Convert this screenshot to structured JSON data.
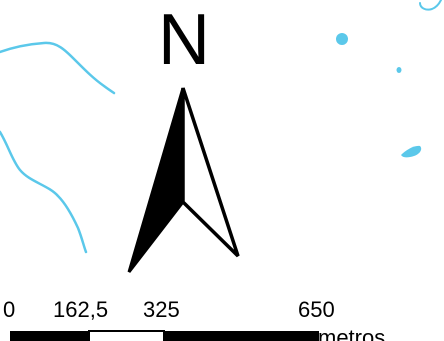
{
  "north_arrow": {
    "label": "N"
  },
  "scale_bar": {
    "ticks": [
      "0",
      "162,5",
      "325",
      "650"
    ],
    "unit": "metros"
  },
  "colors": {
    "water": "#5bc8ea",
    "ink": "#000000",
    "background": "#ffffff"
  },
  "icons": {
    "north_arrow": "north-arrow-icon"
  }
}
